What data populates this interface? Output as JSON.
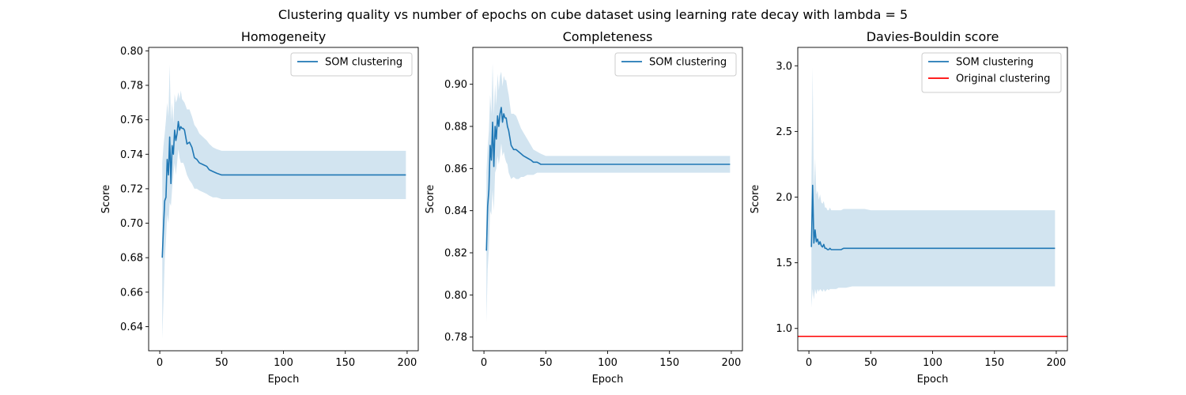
{
  "figure": {
    "suptitle": "Clustering quality vs number of epochs on cube dataset using learning rate decay with lambda = 5"
  },
  "colors": {
    "series": "#1f77b4",
    "band": "#1f77b4",
    "reference": "#ff0000"
  },
  "chart_data": [
    {
      "type": "line",
      "title": "Homogeneity",
      "xlabel": "Epoch",
      "ylabel": "Score",
      "xlim": [
        -9,
        209
      ],
      "ylim": [
        0.626,
        0.802
      ],
      "xticks": [
        0,
        50,
        100,
        150,
        200
      ],
      "xtick_labels": [
        "0",
        "50",
        "100",
        "150",
        "200"
      ],
      "yticks": [
        0.64,
        0.66,
        0.68,
        0.7,
        0.72,
        0.74,
        0.76,
        0.78,
        0.8
      ],
      "ytick_labels": [
        "0.64",
        "0.66",
        "0.68",
        "0.70",
        "0.72",
        "0.74",
        "0.76",
        "0.78",
        "0.80"
      ],
      "legend": {
        "position": "top-right",
        "entries": [
          "SOM clustering"
        ]
      },
      "series": [
        {
          "name": "SOM clustering",
          "x": [
            2,
            3,
            4,
            5,
            6,
            7,
            8,
            9,
            10,
            11,
            12,
            13,
            14,
            15,
            16,
            17,
            18,
            19,
            20,
            22,
            24,
            26,
            28,
            30,
            32,
            35,
            38,
            40,
            43,
            46,
            50,
            55,
            60,
            80,
            100,
            150,
            199
          ],
          "y": [
            0.68,
            0.698,
            0.713,
            0.715,
            0.737,
            0.728,
            0.75,
            0.723,
            0.745,
            0.74,
            0.754,
            0.748,
            0.752,
            0.759,
            0.754,
            0.756,
            0.755,
            0.755,
            0.754,
            0.746,
            0.747,
            0.744,
            0.738,
            0.737,
            0.735,
            0.734,
            0.733,
            0.731,
            0.73,
            0.729,
            0.728,
            0.728,
            0.728,
            0.728,
            0.728,
            0.728,
            0.728
          ],
          "lower": [
            0.633,
            0.655,
            0.678,
            0.69,
            0.705,
            0.7,
            0.712,
            0.71,
            0.72,
            0.728,
            0.735,
            0.728,
            0.735,
            0.743,
            0.738,
            0.735,
            0.735,
            0.735,
            0.733,
            0.728,
            0.725,
            0.723,
            0.72,
            0.72,
            0.719,
            0.718,
            0.717,
            0.716,
            0.715,
            0.715,
            0.714,
            0.714,
            0.714,
            0.714,
            0.714,
            0.714,
            0.714
          ],
          "upper": [
            0.735,
            0.745,
            0.752,
            0.76,
            0.77,
            0.762,
            0.792,
            0.76,
            0.77,
            0.758,
            0.775,
            0.77,
            0.772,
            0.776,
            0.772,
            0.777,
            0.772,
            0.771,
            0.77,
            0.766,
            0.766,
            0.762,
            0.757,
            0.755,
            0.752,
            0.75,
            0.748,
            0.746,
            0.744,
            0.743,
            0.742,
            0.742,
            0.742,
            0.742,
            0.742,
            0.742,
            0.742
          ]
        }
      ]
    },
    {
      "type": "line",
      "title": "Completeness",
      "xlabel": "Epoch",
      "ylabel": "Score",
      "xlim": [
        -9,
        209
      ],
      "ylim": [
        0.7735,
        0.9175
      ],
      "xticks": [
        0,
        50,
        100,
        150,
        200
      ],
      "xtick_labels": [
        "0",
        "50",
        "100",
        "150",
        "200"
      ],
      "yticks": [
        0.78,
        0.8,
        0.82,
        0.84,
        0.86,
        0.88,
        0.9
      ],
      "ytick_labels": [
        "0.78",
        "0.80",
        "0.82",
        "0.84",
        "0.86",
        "0.88",
        "0.90"
      ],
      "legend": {
        "position": "top-right",
        "entries": [
          "SOM clustering"
        ]
      },
      "series": [
        {
          "name": "SOM clustering",
          "x": [
            2,
            3,
            4,
            5,
            6,
            7,
            8,
            9,
            10,
            11,
            12,
            13,
            14,
            15,
            16,
            17,
            18,
            19,
            20,
            22,
            24,
            26,
            28,
            30,
            32,
            35,
            38,
            40,
            43,
            46,
            50,
            55,
            60,
            80,
            100,
            150,
            199
          ],
          "y": [
            0.821,
            0.842,
            0.85,
            0.871,
            0.864,
            0.882,
            0.861,
            0.88,
            0.874,
            0.885,
            0.88,
            0.886,
            0.889,
            0.882,
            0.886,
            0.884,
            0.884,
            0.88,
            0.878,
            0.871,
            0.869,
            0.869,
            0.868,
            0.867,
            0.866,
            0.865,
            0.864,
            0.863,
            0.863,
            0.862,
            0.862,
            0.862,
            0.862,
            0.862,
            0.862,
            0.862,
            0.862
          ],
          "lower": [
            0.787,
            0.812,
            0.822,
            0.84,
            0.838,
            0.85,
            0.84,
            0.858,
            0.86,
            0.866,
            0.862,
            0.866,
            0.872,
            0.866,
            0.868,
            0.865,
            0.863,
            0.862,
            0.858,
            0.855,
            0.856,
            0.855,
            0.855,
            0.856,
            0.856,
            0.857,
            0.857,
            0.857,
            0.858,
            0.858,
            0.858,
            0.858,
            0.858,
            0.858,
            0.858,
            0.858,
            0.858
          ],
          "upper": [
            0.858,
            0.87,
            0.878,
            0.895,
            0.886,
            0.91,
            0.885,
            0.9,
            0.89,
            0.905,
            0.897,
            0.904,
            0.906,
            0.899,
            0.904,
            0.902,
            0.902,
            0.898,
            0.895,
            0.886,
            0.886,
            0.885,
            0.882,
            0.879,
            0.877,
            0.874,
            0.871,
            0.869,
            0.868,
            0.867,
            0.866,
            0.866,
            0.866,
            0.866,
            0.866,
            0.866,
            0.866
          ]
        }
      ]
    },
    {
      "type": "line",
      "title": "Davies-Bouldin score",
      "xlabel": "Epoch",
      "ylabel": "Score",
      "xlim": [
        -9,
        209
      ],
      "ylim": [
        0.83,
        3.14
      ],
      "xticks": [
        0,
        50,
        100,
        150,
        200
      ],
      "xtick_labels": [
        "0",
        "50",
        "100",
        "150",
        "200"
      ],
      "yticks": [
        1.0,
        1.5,
        2.0,
        2.5,
        3.0
      ],
      "ytick_labels": [
        "1.0",
        "1.5",
        "2.0",
        "2.5",
        "3.0"
      ],
      "legend": {
        "position": "top-right",
        "entries": [
          "SOM clustering",
          "Original clustering"
        ]
      },
      "series": [
        {
          "name": "SOM clustering",
          "x": [
            2,
            3,
            4,
            5,
            6,
            7,
            8,
            9,
            10,
            11,
            12,
            13,
            14,
            15,
            16,
            17,
            18,
            19,
            20,
            22,
            24,
            26,
            28,
            30,
            35,
            40,
            45,
            50,
            60,
            80,
            100,
            150,
            199
          ],
          "y": [
            1.62,
            2.09,
            1.65,
            1.75,
            1.66,
            1.68,
            1.64,
            1.66,
            1.63,
            1.62,
            1.64,
            1.61,
            1.61,
            1.6,
            1.6,
            1.61,
            1.6,
            1.6,
            1.6,
            1.6,
            1.6,
            1.6,
            1.61,
            1.61,
            1.61,
            1.61,
            1.61,
            1.61,
            1.61,
            1.61,
            1.61,
            1.61,
            1.61
          ],
          "lower": [
            1.16,
            1.3,
            1.22,
            1.3,
            1.26,
            1.3,
            1.28,
            1.3,
            1.29,
            1.28,
            1.3,
            1.28,
            1.29,
            1.3,
            1.29,
            1.3,
            1.3,
            1.3,
            1.3,
            1.3,
            1.31,
            1.31,
            1.31,
            1.31,
            1.32,
            1.32,
            1.32,
            1.32,
            1.32,
            1.32,
            1.32,
            1.32,
            1.32
          ],
          "upper": [
            2.1,
            2.99,
            2.05,
            2.3,
            2.02,
            2.05,
            1.98,
            2.02,
            1.96,
            1.95,
            1.97,
            1.92,
            1.92,
            1.9,
            1.9,
            1.92,
            1.9,
            1.9,
            1.9,
            1.9,
            1.9,
            1.9,
            1.91,
            1.91,
            1.91,
            1.91,
            1.91,
            1.9,
            1.9,
            1.9,
            1.9,
            1.9,
            1.9
          ]
        },
        {
          "name": "Original clustering",
          "type": "hline",
          "y": 0.94
        }
      ]
    }
  ]
}
